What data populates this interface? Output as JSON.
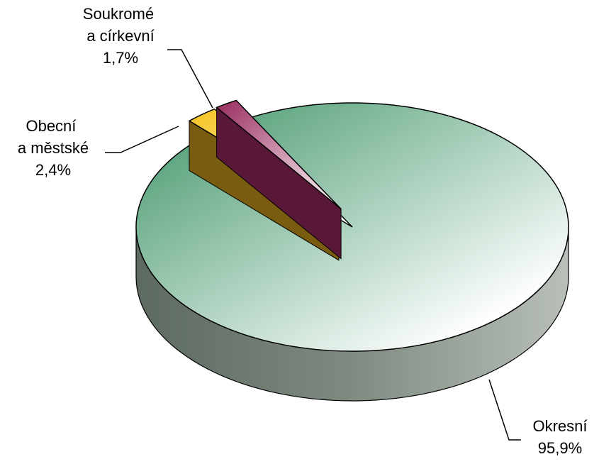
{
  "chart_data": {
    "type": "pie",
    "categories": [
      "Okresní",
      "Obecní a městské",
      "Soukromé a církevní"
    ],
    "values": [
      95.9,
      2.4,
      1.7
    ],
    "value_labels": [
      "95,9%",
      "2,4%",
      "1,7%"
    ],
    "colors": [
      "#3f9468",
      "#f5c21b",
      "#9a2c5f"
    ]
  }
}
